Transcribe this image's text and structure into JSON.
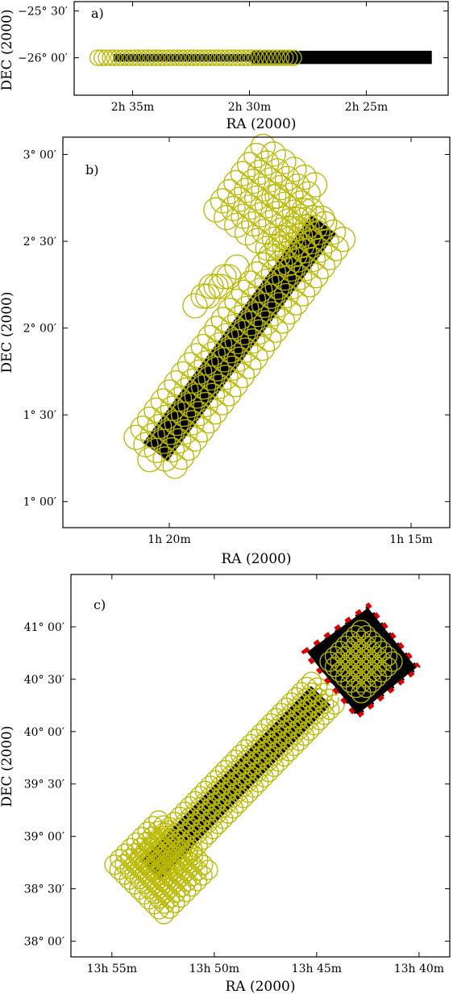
{
  "chart_data": [
    {
      "panel_label": "a)",
      "type": "scatter",
      "xlabel": "RA (2000)",
      "ylabel": "DEC (2000)",
      "x_ticks": [
        "2h 35m",
        "2h 30m",
        "2h 25m"
      ],
      "y_ticks": [
        "−25° 30′",
        "−26° 00′"
      ],
      "x_tick_values_min": [
        35,
        30,
        25
      ],
      "y_tick_values_arcmin": [
        -1530,
        -1560
      ],
      "xlim_min": [
        37.5,
        21.5
      ],
      "ylim_arcmin": [
        -1584,
        -1524
      ],
      "xaxis_reversed": true,
      "rings": {
        "dec_arcmin": -1560,
        "ra_start_min": 36.5,
        "ra_end_min": 28.5,
        "count": 48,
        "radius_arcmin": 3.5,
        "color": "#b8b800"
      },
      "strips": [
        {
          "ra_min": [
            35.8,
            29.9
          ],
          "dec_arcmin": [
            -1562.5,
            -1557.5
          ]
        },
        {
          "ra_min": [
            29.9,
            22.2
          ],
          "dec_arcmin": [
            -1564,
            -1555.5
          ]
        }
      ]
    },
    {
      "panel_label": "b)",
      "type": "scatter",
      "xlabel": "RA (2000)",
      "ylabel": "DEC (2000)",
      "x_ticks": [
        "1h 20m",
        "1h 15m"
      ],
      "y_ticks": [
        "3° 00′",
        "2° 30′",
        "2° 00′",
        "1° 30′",
        "1° 00′"
      ],
      "x_tick_values_min": [
        80,
        75
      ],
      "y_tick_values_arcmin": [
        180,
        150,
        120,
        90,
        60
      ],
      "xlim_min": [
        82.2,
        74.2
      ],
      "ylim_arcmin": [
        51,
        186
      ],
      "xaxis_reversed": true,
      "rings_color": "#b8b800"
    },
    {
      "panel_label": "c)",
      "type": "scatter",
      "xlabel": "RA (2000)",
      "ylabel": "DEC (2000)",
      "x_ticks": [
        "13h 55m",
        "13h 50m",
        "13h 45m",
        "13h 40m"
      ],
      "y_ticks": [
        "41° 00′",
        "40° 30′",
        "40° 00′",
        "39° 30′",
        "39° 00′",
        "38° 30′",
        "38° 00′"
      ],
      "x_tick_values_min": [
        835,
        830,
        825,
        820
      ],
      "y_tick_values_arcmin": [
        2460,
        2430,
        2400,
        2370,
        2340,
        2310,
        2280
      ],
      "xlim_min": [
        837,
        818.5
      ],
      "ylim_arcmin": [
        2271,
        2490
      ],
      "xaxis_reversed": true,
      "rings_color": "#b8b800",
      "outline_colors": [
        "#dd0000",
        "#ffffff"
      ]
    }
  ]
}
